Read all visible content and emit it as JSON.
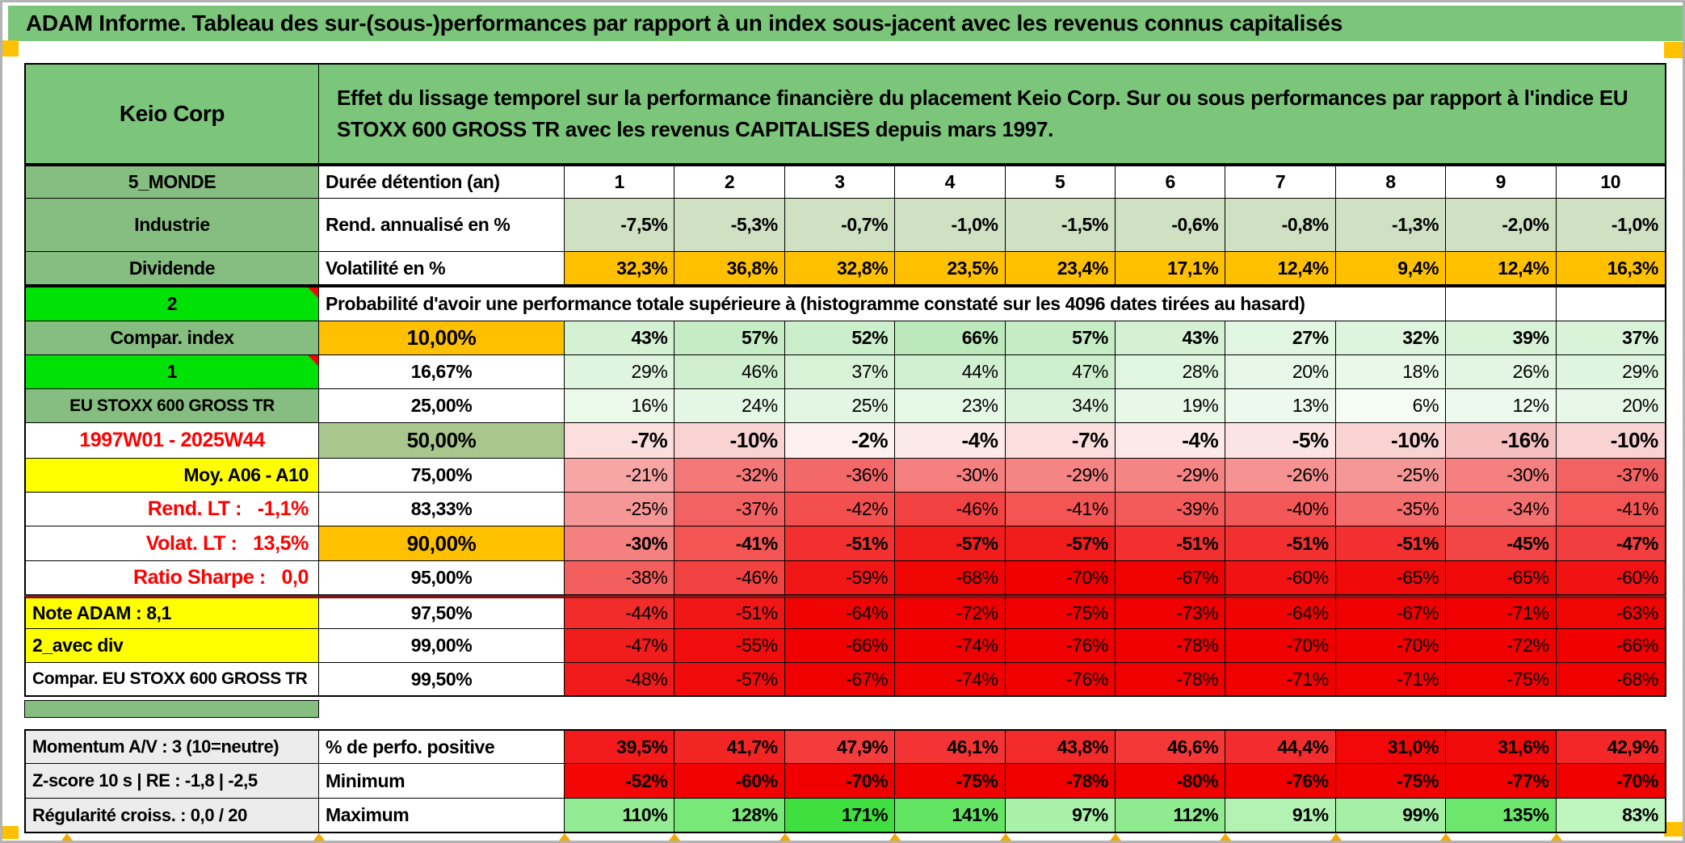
{
  "title": "ADAM Informe. Tableau des sur-(sous-)performances par rapport à un index sous-jacent avec les revenus connus capitalisés",
  "header": {
    "name": "Keio Corp",
    "description": "Effet du lissage temporel sur la performance financière du placement Keio Corp. Sur ou sous performances par rapport à l'indice EU STOXX 600 GROSS TR avec les revenus CAPITALISES depuis mars 1997."
  },
  "colors": {
    "title_green": "#7cc67c",
    "label_green": "#86bd80",
    "bright_green": "#00e206",
    "orange": "#ffc000",
    "yellow": "#ffff00",
    "sage": "#a9c78c",
    "light_sage": "#cfe0c3",
    "gray_label": "#ececec",
    "red_text": "#ff0000",
    "maroon_border": "#8c1212",
    "marker_orange": "#f5a800"
  },
  "table": {
    "rows": [
      {
        "id": "duree",
        "label": "5_MONDE",
        "lstyle": "green",
        "metric": "Durée détention (an)",
        "mstyle": "white",
        "malign": "left",
        "cls": "bt2",
        "vbold": true,
        "vcenter": true,
        "values": [
          "1",
          "2",
          "3",
          "4",
          "5",
          "6",
          "7",
          "8",
          "9",
          "10"
        ]
      },
      {
        "id": "industrie",
        "label": "Industrie",
        "lstyle": "green",
        "metric": "Rend. annualisé en %",
        "mstyle": "white",
        "malign": "left",
        "vbold": true,
        "values": [
          "-7,5%",
          "-5,3%",
          "-0,7%",
          "-1,0%",
          "-1,5%",
          "-0,6%",
          "-0,8%",
          "-1,3%",
          "-2,0%",
          "-1,0%"
        ],
        "bg": [
          "#cfe0c3",
          "#cfe0c3",
          "#cfe0c3",
          "#cfe0c3",
          "#cfe0c3",
          "#cfe0c3",
          "#cfe0c3",
          "#cfe0c3",
          "#cfe0c3",
          "#cfe0c3"
        ]
      },
      {
        "id": "dividende",
        "label": "Dividende",
        "lstyle": "green",
        "metric": "Volatilité en %",
        "mstyle": "white",
        "malign": "left",
        "cls": "bb2",
        "vbold": true,
        "values": [
          "32,3%",
          "36,8%",
          "32,8%",
          "23,5%",
          "23,4%",
          "17,1%",
          "12,4%",
          "9,4%",
          "12,4%",
          "16,3%"
        ],
        "bg": [
          "#ffc000",
          "#ffc000",
          "#ffc000",
          "#ffc000",
          "#ffc000",
          "#ffc000",
          "#ffc000",
          "#ffc000",
          "#ffc000",
          "#ffc000"
        ]
      },
      {
        "id": "proba",
        "label": "2",
        "lstyle": "bright",
        "note": true,
        "cls": "bt2",
        "trailing_empty_cells": 2,
        "metric": "Probabilité d'avoir une performance totale supérieure à (histogramme constaté sur les 4096 dates tirées au hasard)"
      },
      {
        "id": "p10",
        "label": "Compar. index",
        "lstyle": "green",
        "metric": "10,00%",
        "mstyle": "orange",
        "malign": "center",
        "mbig": true,
        "vbold": true,
        "values": [
          "43%",
          "57%",
          "52%",
          "66%",
          "57%",
          "43%",
          "27%",
          "32%",
          "39%",
          "37%"
        ],
        "bg": [
          "#d4f1d4",
          "#c5ecc5",
          "#cbeecb",
          "#bce9bc",
          "#c5ecc5",
          "#d4f1d4",
          "#e1f6e1",
          "#ddf4dd",
          "#d7f2d7",
          "#d9f3d9"
        ]
      },
      {
        "id": "p16",
        "label": "1",
        "lstyle": "bright",
        "note": true,
        "metric": "16,67%",
        "mstyle": "white",
        "malign": "center",
        "values": [
          "29%",
          "46%",
          "37%",
          "44%",
          "47%",
          "28%",
          "20%",
          "18%",
          "26%",
          "29%"
        ],
        "bg": [
          "#e0f5e0",
          "#cfefcf",
          "#d8f2d8",
          "#d1f0d1",
          "#ceefce",
          "#e1f6e1",
          "#e8f8e8",
          "#eaf8ea",
          "#e3f6e3",
          "#e0f5e0"
        ]
      },
      {
        "id": "p25",
        "label": "EU STOXX 600 GROSS TR",
        "lstyle": "green",
        "lsmall": true,
        "metric": "25,00%",
        "mstyle": "white",
        "malign": "center",
        "values": [
          "16%",
          "24%",
          "25%",
          "23%",
          "34%",
          "19%",
          "13%",
          "6%",
          "12%",
          "20%"
        ],
        "bg": [
          "#ebf9eb",
          "#e4f6e4",
          "#e3f6e3",
          "#e5f7e5",
          "#dbf3db",
          "#e8f8e8",
          "#eef9ee",
          "#f4fcf4",
          "#eef9ee",
          "#e7f7e7"
        ]
      },
      {
        "id": "p50",
        "label": "1997W01 - 2025W44",
        "lstyle": "red",
        "metric": "50,00%",
        "mstyle": "sage",
        "malign": "center",
        "mbig": true,
        "vbig": true,
        "vbold": true,
        "values": [
          "-7%",
          "-10%",
          "-2%",
          "-4%",
          "-7%",
          "-4%",
          "-5%",
          "-10%",
          "-16%",
          "-10%"
        ],
        "bg": [
          "#fbdfdf",
          "#f9d2d2",
          "#fdf0f0",
          "#fce9e9",
          "#fbdfdf",
          "#fce9e9",
          "#fce4e4",
          "#f9d2d2",
          "#f7c0c0",
          "#f9d2d2"
        ]
      },
      {
        "id": "p75",
        "label": "Moy. A06 - A10",
        "lstyle": "yellow",
        "lalign": "right",
        "metric": "75,00%",
        "mstyle": "white",
        "malign": "center",
        "values": [
          "-21%",
          "-32%",
          "-36%",
          "-30%",
          "-29%",
          "-29%",
          "-26%",
          "-25%",
          "-30%",
          "-37%"
        ],
        "bg": [
          "#f7a6a6",
          "#f47878",
          "#f36868",
          "#f58080",
          "#f58585",
          "#f58585",
          "#f69292",
          "#f69797",
          "#f58080",
          "#f36262"
        ]
      },
      {
        "id": "p83",
        "label": "Rend. LT :   -1,1%",
        "lstyle": "red",
        "lalign": "right",
        "metric": "83,33%",
        "mstyle": "white",
        "malign": "center",
        "values": [
          "-25%",
          "-37%",
          "-42%",
          "-46%",
          "-41%",
          "-39%",
          "-40%",
          "-35%",
          "-34%",
          "-41%"
        ],
        "bg": [
          "#f69797",
          "#f36262",
          "#f34f4f",
          "#f24242",
          "#f35454",
          "#f35b5b",
          "#f35757",
          "#f46c6c",
          "#f47070",
          "#f35454"
        ]
      },
      {
        "id": "p90",
        "label": "Volat. LT :   13,5%",
        "lstyle": "red",
        "lalign": "right",
        "metric": "90,00%",
        "mstyle": "orange",
        "malign": "center",
        "mbig": true,
        "vbold": true,
        "values": [
          "-30%",
          "-41%",
          "-51%",
          "-57%",
          "-57%",
          "-51%",
          "-51%",
          "-51%",
          "-45%",
          "-47%"
        ],
        "bg": [
          "#f58080",
          "#f35454",
          "#f23030",
          "#f11d1d",
          "#f11d1d",
          "#f23030",
          "#f23030",
          "#f23030",
          "#f24545",
          "#f23e3e"
        ]
      },
      {
        "id": "p95",
        "label": "Ratio Sharpe :   0,0",
        "lstyle": "red",
        "lalign": "right",
        "metric": "95,00%",
        "mstyle": "white",
        "malign": "center",
        "values": [
          "-38%",
          "-46%",
          "-59%",
          "-68%",
          "-70%",
          "-67%",
          "-60%",
          "-65%",
          "-65%",
          "-60%"
        ],
        "bg": [
          "#f35f5f",
          "#f24242",
          "#f11717",
          "#f00505",
          "#f00000",
          "#f00303",
          "#f11313",
          "#f00909",
          "#f00909",
          "#f11313"
        ]
      },
      {
        "id": "p975",
        "label": "Note ADAM : 8,1",
        "lstyle": "yellow",
        "lalign": "left",
        "metric": "97,50%",
        "mstyle": "white",
        "malign": "center",
        "cls": "btm",
        "values": [
          "-44%",
          "-51%",
          "-64%",
          "-72%",
          "-75%",
          "-73%",
          "-64%",
          "-67%",
          "-71%",
          "-63%"
        ],
        "bg": [
          "#f22b2b",
          "#f11717",
          "#f00303",
          "#f00000",
          "#f00000",
          "#f00000",
          "#f00303",
          "#f00000",
          "#f00000",
          "#f00505"
        ]
      },
      {
        "id": "p99",
        "label": "2_avec div",
        "lstyle": "yellow",
        "lalign": "left",
        "metric": "99,00%",
        "mstyle": "white",
        "malign": "center",
        "values": [
          "-47%",
          "-55%",
          "-66%",
          "-74%",
          "-76%",
          "-78%",
          "-70%",
          "-70%",
          "-72%",
          "-66%"
        ],
        "bg": [
          "#f11d1d",
          "#f10d0d",
          "#f00000",
          "#f00000",
          "#f00000",
          "#f00000",
          "#f00000",
          "#f00000",
          "#f00000",
          "#f00000"
        ]
      },
      {
        "id": "p995",
        "label": "Compar. EU STOXX 600 GROSS TR",
        "lstyle": "white",
        "lalign": "left",
        "lsmall": true,
        "metric": "99,50%",
        "mstyle": "white",
        "malign": "center",
        "cls": "bb2",
        "values": [
          "-48%",
          "-57%",
          "-67%",
          "-74%",
          "-76%",
          "-78%",
          "-71%",
          "-71%",
          "-75%",
          "-68%"
        ],
        "bg": [
          "#f11a1a",
          "#f10b0b",
          "#f00000",
          "#f00000",
          "#f00000",
          "#f00000",
          "#f00000",
          "#f00000",
          "#f00000",
          "#f00000"
        ]
      },
      {
        "id": "spacer"
      },
      {
        "id": "momentum",
        "label": "Momentum A/V : 3 (10=neutre)",
        "lstyle": "gray",
        "lalign": "left",
        "metric": "% de perfo. positive",
        "mstyle": "white",
        "malign": "left",
        "cls": "bt2",
        "vbold": true,
        "values": [
          "39,5%",
          "41,7%",
          "47,9%",
          "46,1%",
          "43,8%",
          "46,6%",
          "44,4%",
          "31,0%",
          "31,6%",
          "42,9%"
        ],
        "bg": [
          "#f31b1b",
          "#f32424",
          "#f43c3c",
          "#f43434",
          "#f32a2a",
          "#f43737",
          "#f32d2d",
          "#f20808",
          "#f20b0b",
          "#f32727"
        ]
      },
      {
        "id": "zscore",
        "label": "Z-score 10 s | RE : -1,8 | -2,5",
        "lstyle": "gray",
        "lalign": "left",
        "metric": "Minimum",
        "mstyle": "white",
        "malign": "left",
        "vbold": true,
        "values": [
          "-52%",
          "-60%",
          "-70%",
          "-75%",
          "-78%",
          "-80%",
          "-76%",
          "-75%",
          "-77%",
          "-70%"
        ],
        "bg": [
          "#f20606",
          "#f20202",
          "#f10000",
          "#f10000",
          "#f10000",
          "#f10000",
          "#f10000",
          "#f10000",
          "#f10000",
          "#f10000"
        ]
      },
      {
        "id": "regularite",
        "label": "Régularité croiss. : 0,0 / 20",
        "lstyle": "gray",
        "lalign": "left",
        "metric": "Maximum",
        "mstyle": "white",
        "malign": "left",
        "cls": "bb2",
        "vbold": true,
        "values": [
          "110%",
          "128%",
          "171%",
          "141%",
          "97%",
          "112%",
          "91%",
          "99%",
          "135%",
          "83%"
        ],
        "bg": [
          "#93ec93",
          "#78e878",
          "#3fdf3f",
          "#63e463",
          "#a9f0a9",
          "#90eb90",
          "#b3f2b3",
          "#a6efa6",
          "#6de66d",
          "#bef5be"
        ]
      }
    ]
  }
}
